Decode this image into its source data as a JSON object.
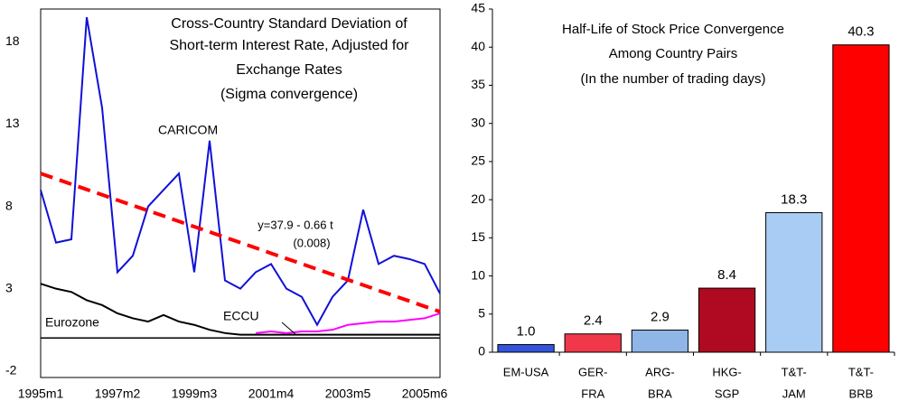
{
  "chart_data": [
    {
      "type": "line",
      "title": [
        "Cross-Country Standard Deviation of",
        "Short-term Interest Rate, Adjusted for",
        "Exchange Rates",
        "(Sigma convergence)"
      ],
      "categories": [
        "1995m1",
        null,
        null,
        null,
        null,
        "1997m2",
        null,
        null,
        null,
        null,
        "1999m3",
        null,
        null,
        null,
        null,
        "2001m4",
        null,
        null,
        null,
        null,
        "2003m5",
        null,
        null,
        null,
        null,
        "2005m6",
        null
      ],
      "series": [
        {
          "name": "CARICOM",
          "color": "#1010d8",
          "values": [
            9,
            5.8,
            6,
            19.5,
            14,
            4,
            5,
            8,
            9,
            10,
            4,
            12,
            3.5,
            3,
            4,
            4.5,
            3,
            2.5,
            0.8,
            2.5,
            3.5,
            7.8,
            4.5,
            5,
            4.8,
            4.5,
            2.7
          ]
        },
        {
          "name": "Eurozone",
          "color": "#000000",
          "values": [
            3.3,
            3,
            2.8,
            2.3,
            2,
            1.5,
            1.2,
            1,
            1.4,
            1,
            0.8,
            0.5,
            0.3,
            0.2,
            0.2,
            0.2,
            0.2,
            0.2,
            0.2,
            0.2,
            0.2,
            0.2,
            0.2,
            0.2,
            0.2,
            0.2,
            0.2
          ]
        },
        {
          "name": "ECCU",
          "color": "#ff00ff",
          "values": [
            null,
            null,
            null,
            null,
            null,
            null,
            null,
            null,
            null,
            null,
            null,
            null,
            null,
            null,
            0.3,
            0.4,
            0.3,
            0.4,
            0.4,
            0.5,
            0.8,
            0.9,
            1,
            1,
            1.1,
            1.2,
            1.5
          ]
        }
      ],
      "trend": {
        "color": "#ff0000",
        "values": [
          10,
          9.68,
          9.35,
          9.03,
          8.71,
          8.38,
          8.06,
          7.74,
          7.42,
          7.09,
          6.77,
          6.45,
          6.12,
          5.8,
          5.48,
          5.15,
          4.83,
          4.51,
          4.18,
          3.86,
          3.54,
          3.22,
          2.89,
          2.57,
          2.25,
          1.92,
          1.6
        ]
      },
      "annotations": [
        "y=37.9 - 0.66 t",
        "(0.008)"
      ],
      "ylim": [
        -2.4,
        20
      ],
      "yticks": [
        -2,
        3,
        8,
        13,
        18
      ]
    },
    {
      "type": "bar",
      "title": [
        "Half-Life of Stock Price Convergence",
        "Among Country Pairs",
        "(In the number of trading days)"
      ],
      "categories": [
        [
          "EM-USA"
        ],
        [
          "GER-",
          "FRA"
        ],
        [
          "ARG-",
          "BRA"
        ],
        [
          "HKG-",
          "SGP"
        ],
        [
          "T&T-",
          "JAM"
        ],
        [
          "T&T-",
          "BRB"
        ]
      ],
      "values": [
        1.0,
        2.4,
        2.9,
        8.4,
        18.3,
        40.3
      ],
      "value_labels": [
        "1.0",
        "2.4",
        "2.9",
        "8.4",
        "18.3",
        "40.3"
      ],
      "colors": [
        "#3355dd",
        "#f0384a",
        "#8fb6e6",
        "#b00a22",
        "#a8ccf4",
        "#ff0000"
      ],
      "ylim": [
        0,
        45
      ],
      "yticks": [
        0,
        5,
        10,
        15,
        20,
        25,
        30,
        35,
        40,
        45
      ]
    }
  ]
}
